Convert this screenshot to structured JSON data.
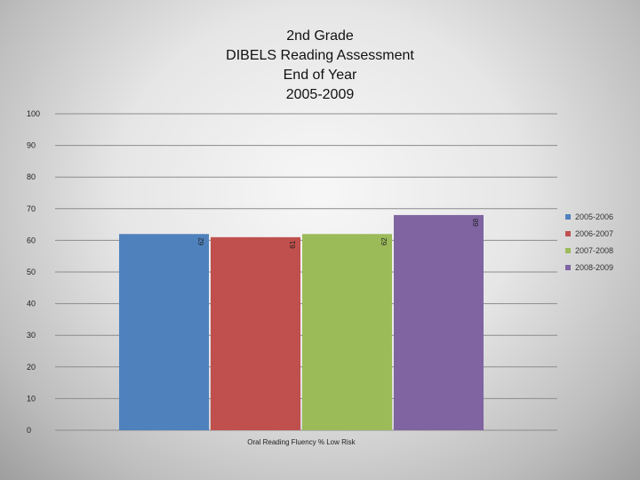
{
  "title_lines": [
    "2nd Grade",
    "DIBELS Reading Assessment",
    "End of Year",
    "2005-2009"
  ],
  "chart_data": {
    "type": "bar",
    "title": "2nd Grade DIBELS Reading Assessment End of Year 2005-2009",
    "categories": [
      "Oral Reading Fluency % Low Risk"
    ],
    "series": [
      {
        "name": "2005-2006",
        "values": [
          62
        ],
        "color": "#4f81bd"
      },
      {
        "name": "2006-2007",
        "values": [
          61
        ],
        "color": "#c0504d"
      },
      {
        "name": "2007-2008",
        "values": [
          62
        ],
        "color": "#9bbb59"
      },
      {
        "name": "2008-2009",
        "values": [
          68
        ],
        "color": "#8064a2"
      }
    ],
    "xlabel": "Oral Reading Fluency % Low Risk",
    "ylabel": "",
    "ylim": [
      0,
      100
    ],
    "yticks": [
      0,
      10,
      20,
      30,
      40,
      50,
      60,
      70,
      80,
      90,
      100
    ],
    "ytick_labels": [
      "0",
      "10",
      "20",
      "30",
      "40",
      "50",
      "60",
      "70",
      "80",
      "90",
      "100"
    ],
    "data_labels": [
      "62",
      "61",
      "62",
      "68"
    ],
    "grid": true,
    "legend_position": "right"
  }
}
